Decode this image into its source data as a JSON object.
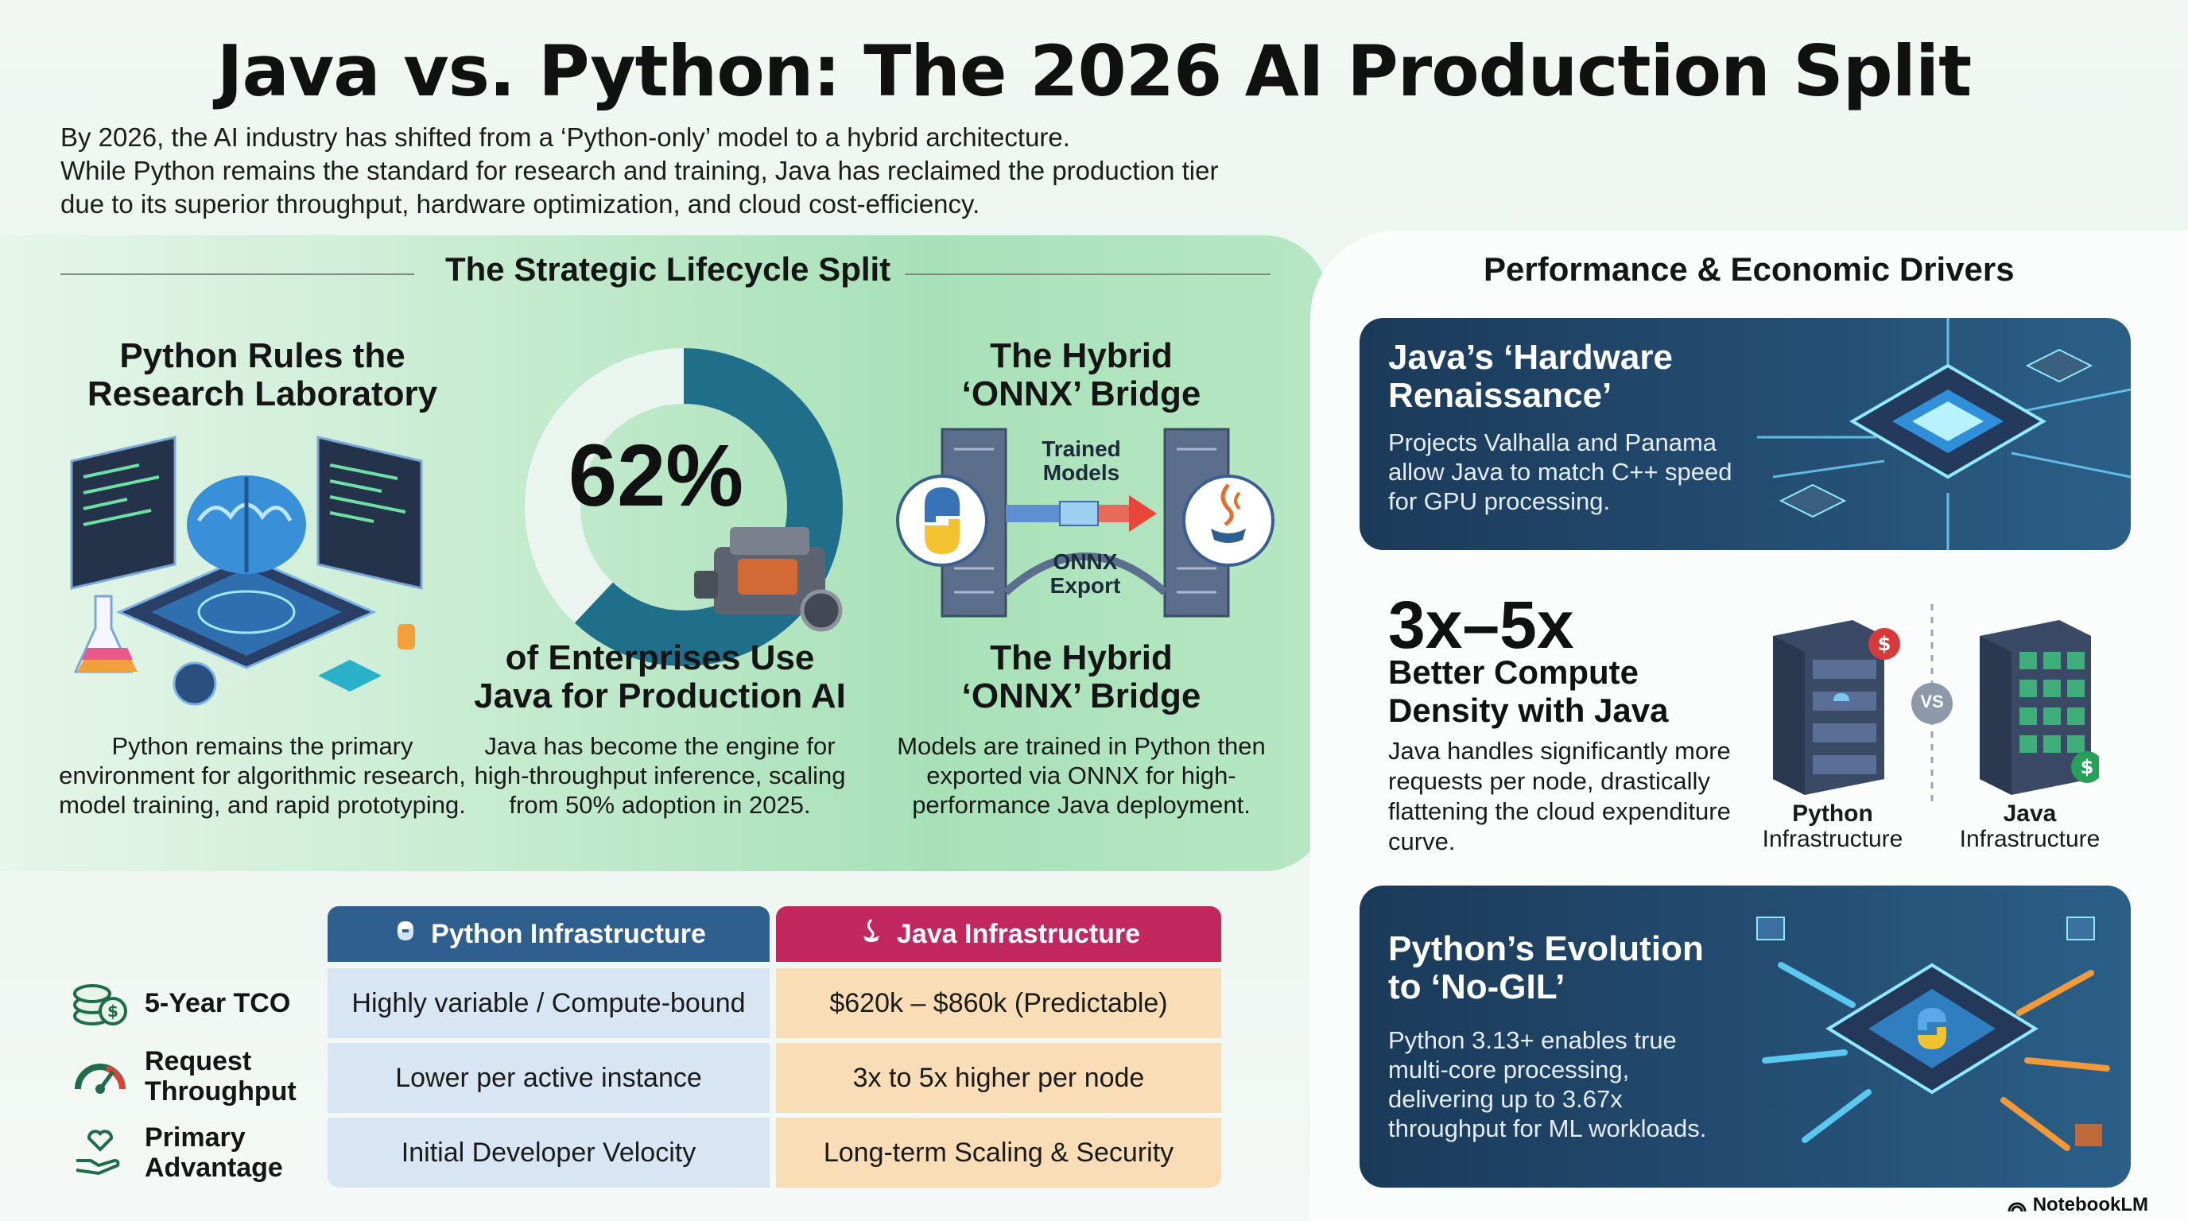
{
  "header": {
    "title": "Java vs. Python: The 2026 AI Production Split",
    "intro_line1": "By 2026, the AI industry has shifted from a ‘Python-only’ model to a hybrid architecture.",
    "intro_line2": "While Python remains the standard for research and training, Java has reclaimed the production tier",
    "intro_line3": "due to its superior throughput, hardware optimization, and cloud cost-efficiency."
  },
  "lifecycle": {
    "heading": "The Strategic Lifecycle Split",
    "python_col": {
      "title_line1": "Python Rules the",
      "title_line2": "Research Laboratory",
      "body_line1": "Python remains the primary",
      "body_line2": "environment for algorithmic research,",
      "body_line3": "model training, and rapid prototyping.",
      "icon": "brain-chip-icon"
    },
    "java_col": {
      "percent": "62%",
      "percent_value": 62,
      "title_line1": "of Enterprises Use",
      "title_line2": "Java for Production AI",
      "body_line1": "Java has become the engine for",
      "body_line2": "high-throughput inference, scaling",
      "body_line3": "from 50% adoption in 2025.",
      "icon": "engine-icon"
    },
    "bridge_col": {
      "title_line1": "The Hybrid",
      "title_line2": "‘ONNX’ Bridge",
      "label_trained_1": "Trained",
      "label_trained_2": "Models",
      "label_onnx_1": "ONNX",
      "label_onnx_2": "Export",
      "title2_line1": "The Hybrid",
      "title2_line2": "‘ONNX’ Bridge",
      "body_line1": "Models are trained in Python then",
      "body_line2": "exported via ONNX for high-",
      "body_line3": "performance Java deployment.",
      "icon": "bridge-icon"
    }
  },
  "table": {
    "python_header": "Python Infrastructure",
    "java_header": "Java Infrastructure",
    "rows": [
      {
        "label_1": "5-Year TCO",
        "label_2": "",
        "python": "Highly variable / Compute-bound",
        "java": "$620k – $860k (Predictable)",
        "icon": "coins-icon"
      },
      {
        "label_1": "Request",
        "label_2": "Throughput",
        "python": "Lower per active instance",
        "java": "3x to 5x higher per node",
        "icon": "gauge-icon"
      },
      {
        "label_1": "Primary",
        "label_2": "Advantage",
        "python": "Initial Developer Velocity",
        "java": "Long-term Scaling & Security",
        "icon": "heart-hand-icon"
      }
    ],
    "colors": {
      "python": "#2f5f8f",
      "java": "#c2285e"
    }
  },
  "drivers": {
    "heading": "Performance & Economic Drivers",
    "card1": {
      "title_line1": "Java’s ‘Hardware",
      "title_line2": "Renaissance’",
      "body_line1": "Projects Valhalla and Panama",
      "body_line2": "allow Java to match C++ speed",
      "body_line3": "for GPU processing.",
      "icon": "cpu-chip-icon"
    },
    "density": {
      "stat": "3x–5x",
      "sub_line1": "Better Compute",
      "sub_line2": "Density with Java",
      "body_line1": "Java handles significantly more",
      "body_line2": "requests per node, drastically",
      "body_line3": "flattening the cloud expenditure",
      "body_line4": "curve.",
      "python_label_1": "Python",
      "python_label_2": "Infrastructure",
      "java_label_1": "Java",
      "java_label_2": "Infrastructure",
      "vs": "VS"
    },
    "card3": {
      "title_line1": "Python’s Evolution",
      "title_line2": "to ‘No-GIL’",
      "body_line1": "Python 3.13+ enables true",
      "body_line2": "multi-core processing,",
      "body_line3": "delivering up to 3.67x",
      "body_line4": "throughput for ML workloads.",
      "icon": "python-chip-icon"
    }
  },
  "brand": "NotebookLM"
}
